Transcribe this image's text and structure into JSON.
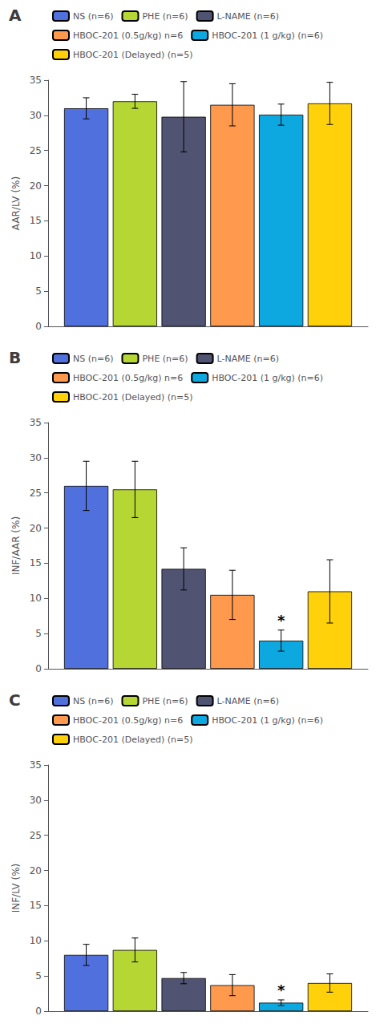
{
  "chart_data": [
    {
      "type": "bar",
      "title": "A",
      "ylabel": "AAR/LV (%)",
      "categories": [
        null
      ],
      "series": [
        {
          "name": "NS (n=6)",
          "values": [
            31.0
          ],
          "errors": [
            1.5
          ]
        },
        {
          "name": "PHE (n=6)",
          "values": [
            32.0
          ],
          "errors": [
            1.0
          ]
        },
        {
          "name": "L-NAME (n=6)",
          "values": [
            29.8
          ],
          "errors": [
            5.0
          ]
        },
        {
          "name": "HBOC-201 (0.5g/kg) n=6",
          "values": [
            31.5
          ],
          "errors": [
            3.0
          ]
        },
        {
          "name": "HBOC-201 (1 g/kg) (n=6)",
          "values": [
            30.1
          ],
          "errors": [
            1.5
          ]
        },
        {
          "name": "HBOC-201 (Delayed) (n=5)",
          "values": [
            31.7
          ],
          "errors": [
            3.0
          ]
        }
      ],
      "ylim": [
        0,
        35
      ],
      "yticks": [
        0,
        5,
        10,
        15,
        20,
        25,
        30,
        35
      ],
      "tick_labels": "y",
      "grid": false,
      "legend": "upper right"
    },
    {
      "type": "bar",
      "title": "B",
      "ylabel": "INF/AAR (%)",
      "categories": [
        null
      ],
      "series": [
        {
          "name": "NS (n=6)",
          "values": [
            26.0
          ],
          "errors": [
            3.5
          ]
        },
        {
          "name": "PHE (n=6)",
          "values": [
            25.5
          ],
          "errors": [
            4.0
          ]
        },
        {
          "name": "L-NAME (n=6)",
          "values": [
            14.2
          ],
          "errors": [
            3.0
          ]
        },
        {
          "name": "HBOC-201 (0.5g/kg) n=6",
          "values": [
            10.5
          ],
          "errors": [
            3.5
          ]
        },
        {
          "name": "HBOC-201 (1 g/kg) (n=6)",
          "values": [
            4.0
          ],
          "errors": [
            1.5
          ]
        },
        {
          "name": "HBOC-201 (Delayed) (n=5)",
          "values": [
            11.0
          ],
          "errors": [
            4.5
          ]
        }
      ],
      "annotations": [
        {
          "text": "*",
          "series": "HBOC-201 (1 g/kg) (n=6)"
        }
      ],
      "ylim": [
        0,
        35
      ],
      "yticks": [
        0,
        5,
        10,
        15,
        20,
        25,
        30,
        35
      ],
      "tick_labels": "y",
      "grid": false,
      "legend": "upper right"
    },
    {
      "type": "bar",
      "title": "C",
      "ylabel": "INF/LV (%)",
      "categories": [
        null
      ],
      "series": [
        {
          "name": "NS (n=6)",
          "values": [
            8.0
          ],
          "errors": [
            1.5
          ]
        },
        {
          "name": "PHE (n=6)",
          "values": [
            8.7
          ],
          "errors": [
            1.7
          ]
        },
        {
          "name": "L-NAME (n=6)",
          "values": [
            4.7
          ],
          "errors": [
            0.8
          ]
        },
        {
          "name": "HBOC-201 (0.5g/kg) n=6",
          "values": [
            3.7
          ],
          "errors": [
            1.5
          ]
        },
        {
          "name": "HBOC-201 (1 g/kg) (n=6)",
          "values": [
            1.2
          ],
          "errors": [
            0.4
          ]
        },
        {
          "name": "HBOC-201 (Delayed) (n=5)",
          "values": [
            4.0
          ],
          "errors": [
            1.3
          ]
        }
      ],
      "annotations": [
        {
          "text": "*",
          "series": "HBOC-201 (1 g/kg) (n=6)"
        }
      ],
      "ylim": [
        0,
        35
      ],
      "yticks": [
        0,
        5,
        10,
        15,
        20,
        25,
        30,
        35
      ],
      "tick_labels": "y",
      "grid": false,
      "legend": "upper right"
    }
  ]
}
